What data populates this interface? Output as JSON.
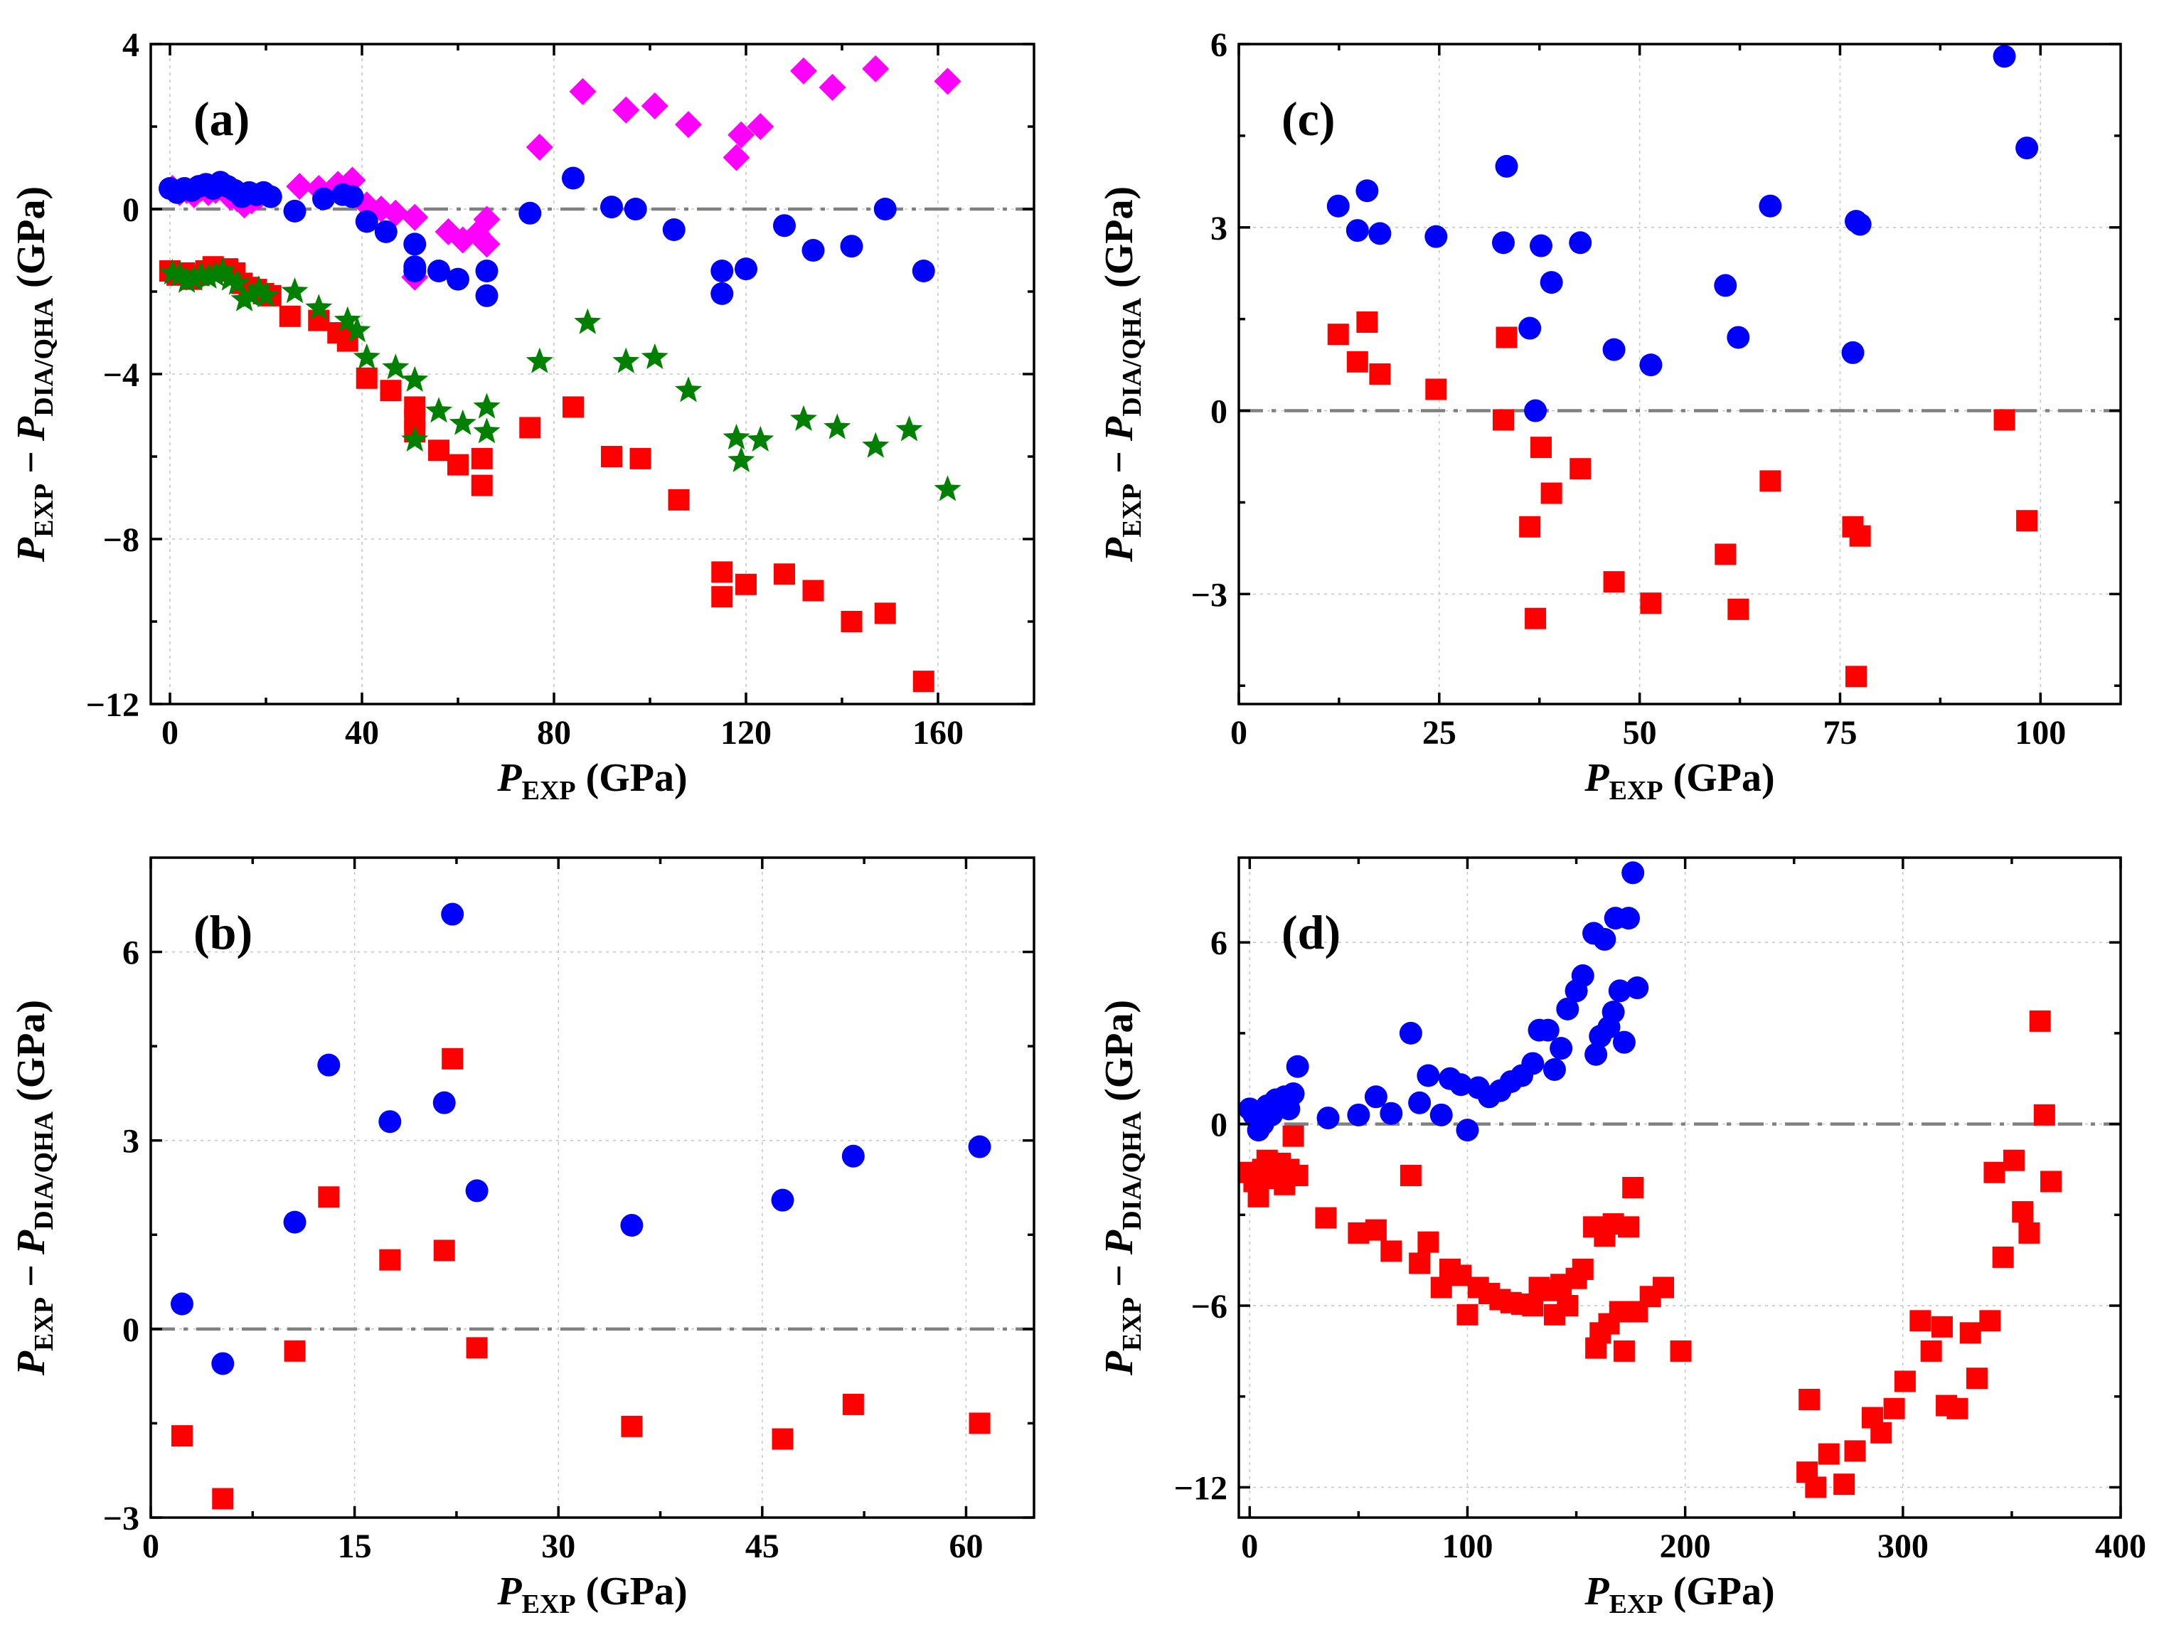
{
  "colors": {
    "blue": "#0000ff",
    "red": "#ff0000",
    "magenta": "#ff00ff",
    "green": "#008000",
    "zero_line": "#808080"
  },
  "chart_data": [
    {
      "panel": "a",
      "type": "scatter",
      "title": "(a)",
      "xlabel": {
        "main": "P",
        "sub": "EXP",
        "unit": " (GPa)"
      },
      "ylabel": {
        "p1": "P",
        "s1": "EXP",
        "mid": " − ",
        "p2": "P",
        "s2": "DIA/QHA",
        "unit": " (GPa)"
      },
      "xlim": [
        -4,
        180
      ],
      "ylim": [
        -12,
        4
      ],
      "xticks": [
        0,
        40,
        80,
        120,
        160
      ],
      "xticklabels": [
        "0",
        "40",
        "80",
        "120",
        "160"
      ],
      "yticks": [
        -12,
        -8,
        -4,
        0,
        4
      ],
      "yticklabels": [
        "−12",
        "−8",
        "−4",
        "0",
        "4"
      ],
      "xminor": [
        20,
        60,
        100,
        140
      ],
      "yminor": [
        -10,
        -6,
        -2,
        2
      ],
      "grid": true,
      "series": [
        {
          "name": "magenta diamonds",
          "marker": "diamond",
          "color": "#ff00ff",
          "x": [
            0.5,
            2,
            3.5,
            5,
            6.5,
            8,
            9.5,
            11,
            12.5,
            14,
            15.5,
            17,
            18.5,
            27,
            31,
            35,
            38,
            41,
            44,
            47,
            51,
            51,
            58,
            61,
            64,
            66,
            66,
            77,
            86,
            95,
            101,
            108,
            118,
            119,
            123,
            132,
            138,
            147,
            162
          ],
          "y": [
            0.5,
            0.4,
            0.45,
            0.35,
            0.5,
            0.4,
            0.45,
            0.5,
            0.3,
            0.25,
            0.1,
            0.2,
            0.3,
            0.55,
            0.5,
            0.6,
            0.7,
            0.1,
            0.0,
            -0.1,
            -1.65,
            -0.2,
            -0.55,
            -0.75,
            -0.6,
            -0.85,
            -0.25,
            1.5,
            2.85,
            2.4,
            2.5,
            2.05,
            1.25,
            1.8,
            2.0,
            3.35,
            2.95,
            3.4,
            3.1
          ]
        },
        {
          "name": "blue circles",
          "marker": "circle",
          "color": "#0000ff",
          "x": [
            0,
            1.5,
            3,
            4.5,
            6,
            7.5,
            9,
            10.5,
            12,
            13.5,
            15,
            16.5,
            18,
            19.5,
            21,
            26,
            32,
            36,
            38,
            41,
            45,
            51,
            51,
            51,
            56,
            60,
            66,
            66,
            75,
            84,
            92,
            97,
            105,
            115,
            115,
            120,
            128,
            134,
            142,
            149,
            157
          ],
          "y": [
            0.5,
            0.4,
            0.5,
            0.45,
            0.55,
            0.6,
            0.5,
            0.65,
            0.55,
            0.45,
            0.3,
            0.4,
            0.35,
            0.4,
            0.3,
            -0.05,
            0.25,
            0.35,
            0.3,
            -0.3,
            -0.55,
            -0.85,
            -1.4,
            -1.5,
            -1.5,
            -1.7,
            -1.5,
            -2.1,
            -0.1,
            0.75,
            0.05,
            0.0,
            -0.5,
            -1.5,
            -2.05,
            -1.45,
            -0.4,
            -1.0,
            -0.9,
            0.0,
            -1.5
          ]
        },
        {
          "name": "red squares",
          "marker": "square",
          "color": "#ff0000",
          "x": [
            0,
            1.5,
            3,
            4.5,
            6,
            7.5,
            9,
            10.5,
            12,
            13.5,
            15,
            16.5,
            18,
            19.5,
            21,
            25,
            31,
            35,
            37,
            41,
            46,
            51,
            51,
            51,
            56,
            60,
            65,
            65,
            75,
            84,
            92,
            98,
            106,
            115,
            115,
            120,
            128,
            134,
            142,
            149,
            157
          ],
          "y": [
            -1.5,
            -1.6,
            -1.55,
            -1.7,
            -1.6,
            -1.5,
            -1.4,
            -1.5,
            -1.45,
            -1.55,
            -1.8,
            -1.9,
            -1.95,
            -2.05,
            -2.1,
            -2.6,
            -2.7,
            -3.0,
            -3.2,
            -4.1,
            -4.4,
            -4.8,
            -5.1,
            -5.4,
            -5.85,
            -6.2,
            -6.05,
            -6.7,
            -5.3,
            -4.8,
            -6.0,
            -6.05,
            -7.05,
            -8.8,
            -9.4,
            -9.1,
            -8.85,
            -9.25,
            -10.0,
            -9.8,
            -11.45
          ]
        },
        {
          "name": "green stars",
          "marker": "star",
          "color": "#008000",
          "x": [
            0.5,
            2,
            3.5,
            5,
            6.5,
            8,
            9.5,
            11,
            12.5,
            14,
            15.5,
            17,
            18.5,
            20,
            26,
            31,
            37,
            39,
            41,
            47,
            51,
            51,
            56,
            61,
            66,
            66,
            77,
            87,
            95,
            101,
            108,
            118,
            119,
            123,
            132,
            139,
            147,
            154,
            162
          ],
          "y": [
            -1.55,
            -1.6,
            -1.75,
            -1.7,
            -1.6,
            -1.65,
            -1.6,
            -1.5,
            -1.7,
            -1.8,
            -2.2,
            -2.1,
            -1.95,
            -2.1,
            -2.0,
            -2.4,
            -2.7,
            -2.95,
            -3.6,
            -3.85,
            -4.15,
            -5.6,
            -4.9,
            -5.2,
            -4.8,
            -5.4,
            -3.7,
            -2.75,
            -3.7,
            -3.6,
            -4.4,
            -5.55,
            -6.1,
            -5.6,
            -5.1,
            -5.3,
            -5.75,
            -5.35,
            -6.8
          ]
        }
      ]
    },
    {
      "panel": "b",
      "type": "scatter",
      "title": "(b)",
      "xlabel": {
        "main": "P",
        "sub": "EXP",
        "unit": " (GPa)"
      },
      "ylabel": {
        "p1": "P",
        "s1": "EXP",
        "mid": " − ",
        "p2": "P",
        "s2": "DIA/QHA",
        "unit": " (GPa)"
      },
      "xlim": [
        0,
        65
      ],
      "ylim": [
        -3,
        7.5
      ],
      "xticks": [
        0,
        15,
        30,
        45,
        60
      ],
      "xticklabels": [
        "0",
        "15",
        "30",
        "45",
        "60"
      ],
      "yticks": [
        -3,
        0,
        3,
        6
      ],
      "yticklabels": [
        "−3",
        "0",
        "3",
        "6"
      ],
      "xminor": [
        7.5,
        22.5,
        37.5,
        52.5
      ],
      "yminor": [
        -1.5,
        1.5,
        4.5
      ],
      "grid": true,
      "series": [
        {
          "name": "blue circles",
          "marker": "circle",
          "color": "#0000ff",
          "x": [
            2.3,
            5.3,
            10.6,
            13.1,
            17.6,
            21.6,
            22.2,
            24,
            35.4,
            46.5,
            51.7,
            61
          ],
          "y": [
            0.4,
            -0.55,
            1.7,
            4.2,
            3.3,
            3.6,
            6.6,
            2.2,
            1.65,
            2.05,
            2.75,
            2.9
          ]
        },
        {
          "name": "red squares",
          "marker": "square",
          "color": "#ff0000",
          "x": [
            2.3,
            5.3,
            10.6,
            13.1,
            17.6,
            21.6,
            22.2,
            24,
            35.4,
            46.5,
            51.7,
            61
          ],
          "y": [
            -1.7,
            -2.7,
            -0.35,
            2.1,
            1.1,
            1.25,
            4.3,
            -0.3,
            -1.55,
            -1.75,
            -1.2,
            -1.5
          ]
        }
      ]
    },
    {
      "panel": "c",
      "type": "scatter",
      "title": "(c)",
      "xlabel": {
        "main": "P",
        "sub": "EXP",
        "unit": " (GPa)"
      },
      "ylabel": {
        "p1": "P",
        "s1": "EXP",
        "mid": " − ",
        "p2": "P",
        "s2": "DIA/QHA",
        "unit": " (GPa)"
      },
      "xlim": [
        0,
        110
      ],
      "ylim": [
        -4.8,
        6
      ],
      "xticks": [
        0,
        25,
        50,
        75,
        100
      ],
      "xticklabels": [
        "0",
        "25",
        "50",
        "75",
        "100"
      ],
      "yticks": [
        -3,
        0,
        3,
        6
      ],
      "yticklabels": [
        "−3",
        "0",
        "3",
        "6"
      ],
      "xminor": [
        12.5,
        37.5,
        62.5,
        87.5
      ],
      "yminor": [
        -4.5,
        -1.5,
        1.5,
        4.5
      ],
      "grid": true,
      "series": [
        {
          "name": "blue circles",
          "marker": "circle",
          "color": "#0000ff",
          "x": [
            12.4,
            14.8,
            16,
            17.6,
            24.6,
            33,
            33.4,
            36.3,
            37,
            37.7,
            39,
            42.6,
            46.8,
            51.4,
            60.7,
            62.3,
            66.3,
            76.6,
            77,
            77.5,
            95.5,
            98.3
          ],
          "y": [
            3.35,
            2.95,
            3.6,
            2.9,
            2.85,
            2.75,
            4.0,
            1.35,
            0.0,
            2.7,
            2.1,
            2.75,
            1.0,
            0.75,
            2.05,
            1.2,
            3.35,
            0.95,
            3.1,
            3.05,
            5.8,
            4.3
          ]
        },
        {
          "name": "red squares",
          "marker": "square",
          "color": "#ff0000",
          "x": [
            12.4,
            14.8,
            16,
            17.6,
            24.6,
            33,
            33.4,
            36.3,
            37,
            37.7,
            39,
            42.6,
            46.8,
            51.4,
            60.7,
            62.3,
            66.3,
            76.6,
            77,
            77.5,
            95.5,
            98.3
          ],
          "y": [
            1.25,
            0.8,
            1.45,
            0.6,
            0.35,
            -0.15,
            1.2,
            -1.9,
            -3.4,
            -0.6,
            -1.35,
            -0.95,
            -2.8,
            -3.15,
            -2.35,
            -3.25,
            -1.15,
            -1.9,
            -4.35,
            -2.05,
            -0.15,
            -1.8
          ]
        }
      ]
    },
    {
      "panel": "d",
      "type": "scatter",
      "title": "(d)",
      "xlabel": {
        "main": "P",
        "sub": "EXP",
        "unit": " (GPa)"
      },
      "ylabel": {
        "p1": "P",
        "s1": "EXP",
        "mid": " − ",
        "p2": "P",
        "s2": "DIA/QHA",
        "unit": " (GPa)"
      },
      "xlim": [
        -5,
        400
      ],
      "ylim": [
        -13,
        8.8
      ],
      "xticks": [
        0,
        100,
        200,
        300,
        400
      ],
      "xticklabels": [
        "0",
        "100",
        "200",
        "300",
        "400"
      ],
      "yticks": [
        -12,
        -6,
        0,
        6
      ],
      "yticklabels": [
        "−12",
        "−6",
        "0",
        "6"
      ],
      "xminor": [
        50,
        150,
        250,
        350
      ],
      "yminor": [
        -9,
        -3,
        3
      ],
      "grid": true,
      "series": [
        {
          "name": "blue circles",
          "marker": "circle",
          "color": "#0000ff",
          "x": [
            0,
            2,
            4,
            6,
            8,
            10,
            12,
            14,
            16,
            18,
            20,
            22,
            36,
            50,
            58,
            65,
            74,
            78,
            82,
            88,
            92,
            97,
            100,
            105,
            110,
            115,
            120,
            125,
            130,
            133,
            137,
            140,
            143,
            146,
            150,
            153,
            158,
            159,
            161,
            163,
            165,
            167,
            168,
            170,
            172,
            174,
            176,
            178
          ],
          "y": [
            0.5,
            0.3,
            -0.2,
            0.0,
            0.6,
            0.3,
            0.8,
            0.7,
            0.9,
            0.5,
            1.0,
            1.9,
            0.2,
            0.3,
            0.9,
            0.35,
            3.0,
            0.7,
            1.6,
            0.3,
            1.5,
            1.3,
            -0.2,
            1.2,
            0.9,
            1.1,
            1.4,
            1.6,
            2.0,
            3.1,
            3.1,
            1.8,
            2.5,
            3.8,
            4.4,
            4.9,
            6.3,
            2.3,
            2.9,
            6.1,
            3.2,
            3.7,
            6.8,
            4.4,
            2.7,
            6.8,
            8.3,
            4.5
          ]
        },
        {
          "name": "red squares",
          "marker": "square",
          "color": "#ff0000",
          "x": [
            0,
            2,
            4,
            6,
            8,
            10,
            12,
            14,
            16,
            18,
            20,
            22,
            35,
            50,
            58,
            65,
            74,
            78,
            82,
            88,
            92,
            97,
            100,
            105,
            110,
            115,
            120,
            125,
            130,
            133,
            137,
            140,
            143,
            146,
            150,
            153,
            158,
            159,
            161,
            163,
            165,
            167,
            170,
            172,
            174,
            176,
            178,
            184,
            190,
            198,
            256,
            257,
            260,
            266,
            273,
            278,
            286,
            290,
            296,
            301,
            308,
            313,
            318,
            320,
            325,
            331,
            334,
            340,
            342,
            346,
            351,
            355,
            358,
            363,
            365,
            368
          ],
          "y": [
            -1.6,
            -1.9,
            -2.4,
            -1.5,
            -1.2,
            -1.8,
            -1.4,
            -1.3,
            -2.0,
            -1.5,
            -0.4,
            -1.7,
            -3.1,
            -3.6,
            -3.5,
            -4.2,
            -1.7,
            -4.6,
            -3.9,
            -5.4,
            -4.8,
            -5.0,
            -6.3,
            -5.4,
            -5.6,
            -5.8,
            -5.9,
            -5.95,
            -6.0,
            -5.4,
            -5.5,
            -6.3,
            -5.3,
            -6.0,
            -5.1,
            -4.8,
            -3.4,
            -7.4,
            -6.9,
            -3.7,
            -6.6,
            -3.3,
            -6.2,
            -7.5,
            -3.4,
            -2.1,
            -6.2,
            -5.7,
            -5.4,
            -7.5,
            -11.5,
            -9.1,
            -12.0,
            -10.9,
            -11.9,
            -10.8,
            -9.7,
            -10.2,
            -9.4,
            -8.5,
            -6.5,
            -7.5,
            -6.7,
            -9.3,
            -9.4,
            -6.9,
            -8.4,
            -6.5,
            -1.6,
            -4.4,
            -1.2,
            -2.9,
            -3.6,
            3.4,
            0.3,
            -1.9
          ]
        }
      ]
    }
  ]
}
